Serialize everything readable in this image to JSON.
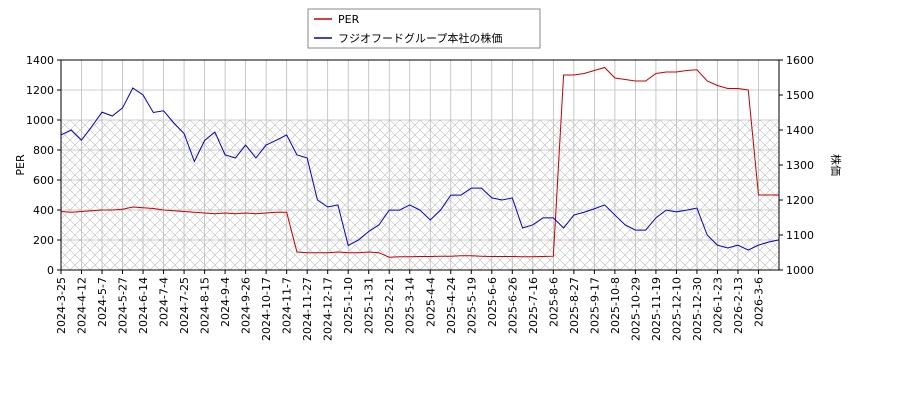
{
  "chart_data": {
    "type": "line",
    "categories": [
      "2024-3-25",
      null,
      "2024-4-12",
      null,
      "2024-5-7",
      null,
      "2024-5-27",
      null,
      "2024-6-14",
      null,
      "2024-7-4",
      null,
      "2024-7-25",
      null,
      "2024-8-15",
      null,
      "2024-9-4",
      null,
      "2024-9-26",
      null,
      "2024-10-17",
      null,
      "2024-11-7",
      null,
      "2024-11-27",
      null,
      "2024-12-17",
      null,
      "2025-1-10",
      null,
      "2025-1-31",
      null,
      "2025-2-21",
      null,
      "2025-3-14",
      null,
      "2025-4-4",
      null,
      "2025-4-24",
      null,
      "2025-5-19",
      null,
      "2025-6-6",
      null,
      "2025-6-26",
      null,
      "2025-7-16",
      null,
      "2025-8-6",
      null,
      "2025-8-27",
      null,
      "2025-9-17",
      null,
      "2025-10-8",
      null,
      "2025-10-29",
      null,
      "2025-11-19",
      null,
      "2025-12-10",
      null,
      "2025-12-30",
      null,
      "2026-1-23",
      null,
      "2026-2-13",
      null,
      "2026-3-6",
      null,
      null
    ],
    "series": [
      {
        "name": "PER",
        "color": "#cc0000",
        "values": [
          390,
          385,
          390,
          395,
          400,
          400,
          405,
          420,
          415,
          410,
          400,
          395,
          390,
          385,
          380,
          375,
          380,
          375,
          380,
          375,
          380,
          385,
          385,
          120,
          115,
          115,
          115,
          120,
          115,
          115,
          120,
          115,
          85,
          88,
          88,
          90,
          90,
          92,
          92,
          95,
          95,
          92,
          90,
          90,
          90,
          88,
          88,
          90,
          92,
          1300,
          1300,
          1310,
          1330,
          1350,
          1280,
          1270,
          1260,
          1260,
          1310,
          1320,
          1320,
          1330,
          1335,
          1260,
          1230,
          1210,
          1210,
          1200,
          500,
          500,
          500
        ]
      },
      {
        "name": "フジオフードグループ本社の株価",
        "color": "#0000cc",
        "axis": "y2",
        "values": [
          1386,
          1400,
          1371,
          1410,
          1451,
          1440,
          1463,
          1520,
          1500,
          1450,
          1455,
          1420,
          1390,
          1310,
          1370,
          1394,
          1329,
          1320,
          1357,
          1320,
          1357,
          1371,
          1386,
          1329,
          1320,
          1200,
          1180,
          1186,
          1070,
          1086,
          1110,
          1129,
          1171,
          1171,
          1186,
          1171,
          1143,
          1171,
          1214,
          1214,
          1234,
          1234,
          1206,
          1200,
          1206,
          1120,
          1129,
          1149,
          1149,
          1120,
          1157,
          1165,
          1175,
          1186,
          1157,
          1129,
          1114,
          1114,
          1149,
          1171,
          1166,
          1171,
          1177,
          1100,
          1071,
          1063,
          1071,
          1057,
          1071,
          1080,
          1086
        ]
      }
    ],
    "ylabel": "PER",
    "y2label": "株価",
    "ylim": [
      0,
      1400
    ],
    "yticks": [
      0,
      200,
      400,
      600,
      800,
      1000,
      1200,
      1400
    ],
    "y2lim": [
      1000,
      1600
    ],
    "y2ticks": [
      1000,
      1100,
      1200,
      1300,
      1400,
      1500,
      1600
    ],
    "grid": true,
    "legend": "upper center"
  }
}
